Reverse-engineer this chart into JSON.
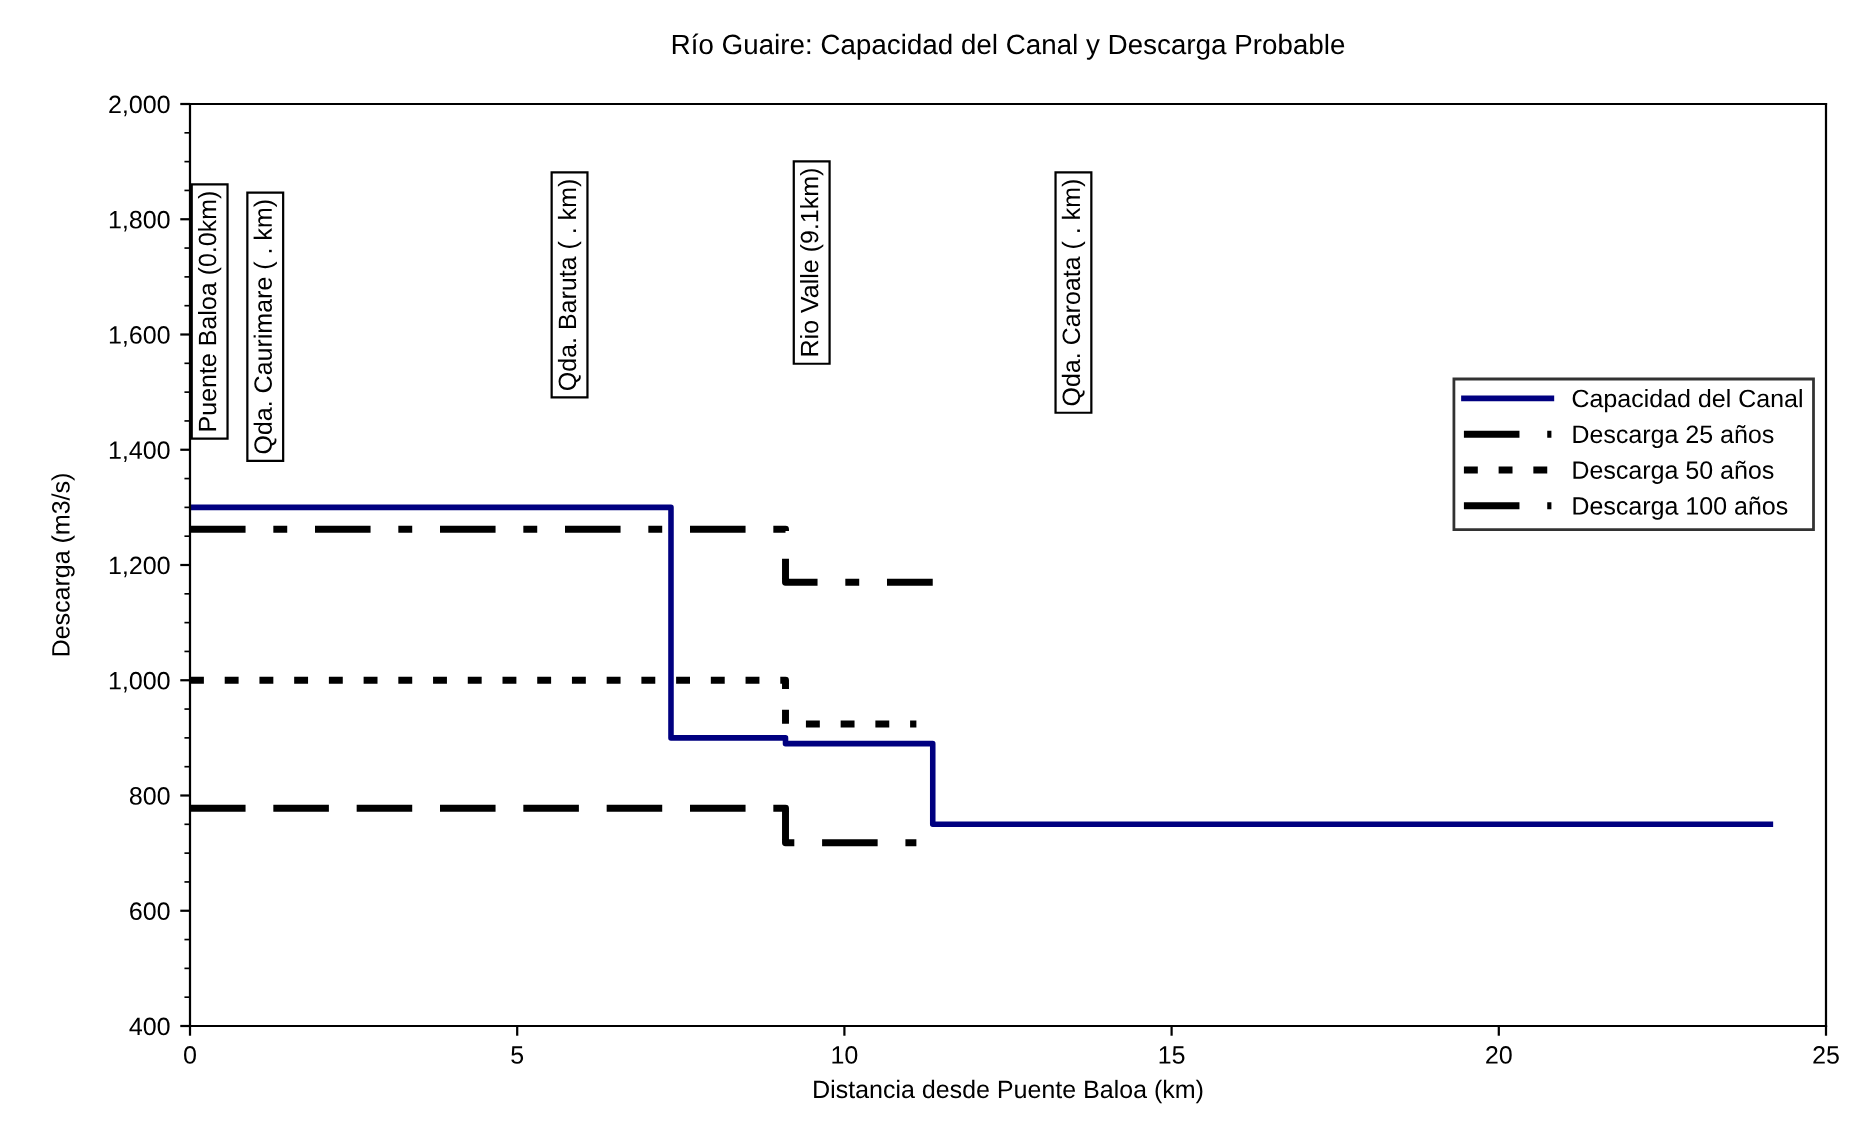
{
  "chart_data": {
    "type": "step",
    "title": "Río Guaire: Capacidad del Canal y Descarga Probable",
    "xlabel": "Distancia desde Puente Baloa (km)",
    "ylabel": "Descarga (m3/s)",
    "series": [
      {
        "name": "Capacidad del Canal",
        "color": "#000080",
        "line_style": "solid",
        "x": [
          0,
          7.35,
          9.1,
          11.35,
          24.15
        ],
        "values": [
          1300,
          900,
          890,
          750,
          750
        ]
      },
      {
        "name": "Descarga 25 años",
        "color": "#000000",
        "line_style": "dashed",
        "x": [
          0,
          9.1,
          11.1
        ],
        "values": [
          778,
          718,
          718
        ]
      },
      {
        "name": "Descarga 50 años",
        "color": "#000000",
        "line_style": "dotted",
        "x": [
          0,
          9.1,
          11.1
        ],
        "values": [
          1000,
          924,
          924
        ]
      },
      {
        "name": "Descarga 100 años",
        "color": "#000000",
        "line_style": "dashdot",
        "x": [
          0,
          9.1,
          11.35
        ],
        "values": [
          1262,
          1170,
          1170
        ]
      }
    ],
    "annotations": [
      "Puente Baloa (0.0km)",
      "Qda. Caurimare ( . km)",
      "Qda. Baruta ( . km)",
      "Rio Valle (9.1km)",
      "Qda. Caroata ( . km)"
    ],
    "xlim": [
      0,
      25
    ],
    "xticks": [
      0,
      5,
      10,
      15,
      20,
      25
    ],
    "ylim": [
      400,
      2000
    ],
    "yticks": [
      400,
      600,
      800,
      {
        "value": 1000,
        "label": "1,000"
      },
      {
        "value": 1200,
        "label": "1,200"
      },
      {
        "value": 1400,
        "label": "1,400"
      },
      {
        "value": 1600,
        "label": "1,600"
      },
      {
        "value": 1800,
        "label": "1,800"
      },
      {
        "value": 2000,
        "label": "2,000"
      }
    ],
    "grid": false,
    "legend": "right",
    "marker": "none"
  }
}
